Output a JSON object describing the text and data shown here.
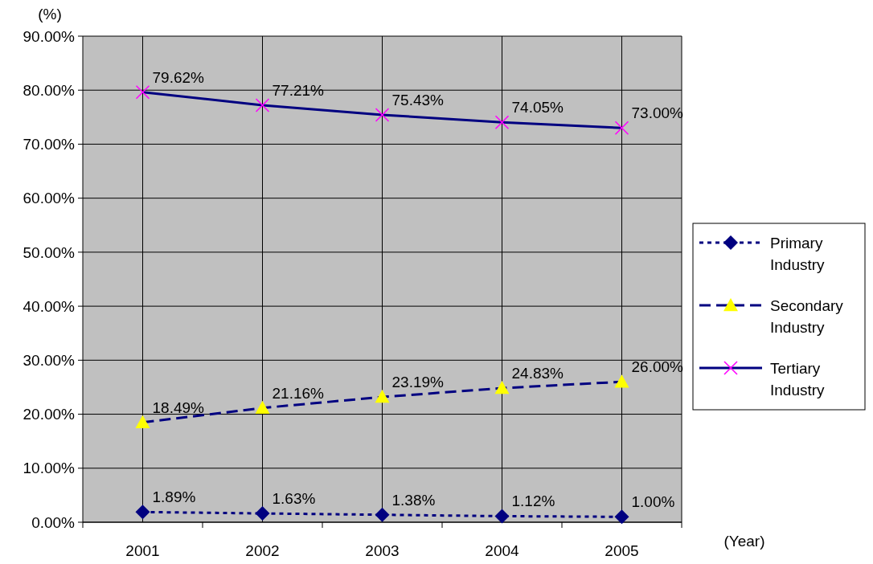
{
  "chart_data": {
    "type": "line",
    "ylabel": "(%)",
    "xlabel": "(Year)",
    "categories": [
      "2001",
      "2002",
      "2003",
      "2004",
      "2005"
    ],
    "series": [
      {
        "name": "Primary Industry",
        "color": "#000080",
        "marker": "diamond",
        "colors": [
          "#000080",
          "#000080",
          "#000080",
          "#000080",
          "#000080"
        ],
        "line_style": "dotted",
        "values": [
          1.89,
          1.63,
          1.38,
          1.12,
          1.0
        ],
        "value_labels": [
          "1.89%",
          "1.63%",
          "1.38%",
          "1.12%",
          "1.00%"
        ]
      },
      {
        "name": "Secondary Industry",
        "color": "#000080",
        "marker": "triangle",
        "colors": [
          "#ffff00",
          "#ffff00",
          "#ffff00",
          "#ffff00",
          "#ffff00"
        ],
        "line_style": "dashed",
        "values": [
          18.49,
          21.16,
          23.19,
          24.83,
          26.0
        ],
        "value_labels": [
          "18.49%",
          "21.16%",
          "23.19%",
          "24.83%",
          "26.00%"
        ]
      },
      {
        "name": "Tertiary Industry",
        "color": "#000080",
        "marker": "cross",
        "colors": [
          "#ff00ff",
          "#ff00ff",
          "#ff00ff",
          "#ff00ff",
          "#ff00ff"
        ],
        "line_style": "solid",
        "values": [
          79.62,
          77.21,
          75.43,
          74.05,
          73.0
        ],
        "value_labels": [
          "79.62%",
          "77.21%",
          "75.43%",
          "74.05%",
          "73.00%"
        ]
      }
    ],
    "ylim": [
      0,
      90
    ],
    "yticks": [
      {
        "value": 0,
        "label": "0.00%"
      },
      {
        "value": 10,
        "label": "10.00%"
      },
      {
        "value": 20,
        "label": "20.00%"
      },
      {
        "value": 30,
        "label": "30.00%"
      },
      {
        "value": 40,
        "label": "40.00%"
      },
      {
        "value": 50,
        "label": "50.00%"
      },
      {
        "value": 60,
        "label": "60.00%"
      },
      {
        "value": 70,
        "label": "70.00%"
      },
      {
        "value": 80,
        "label": "80.00%"
      },
      {
        "value": 90,
        "label": "90.00%"
      }
    ],
    "grid": true,
    "legend": "right"
  }
}
